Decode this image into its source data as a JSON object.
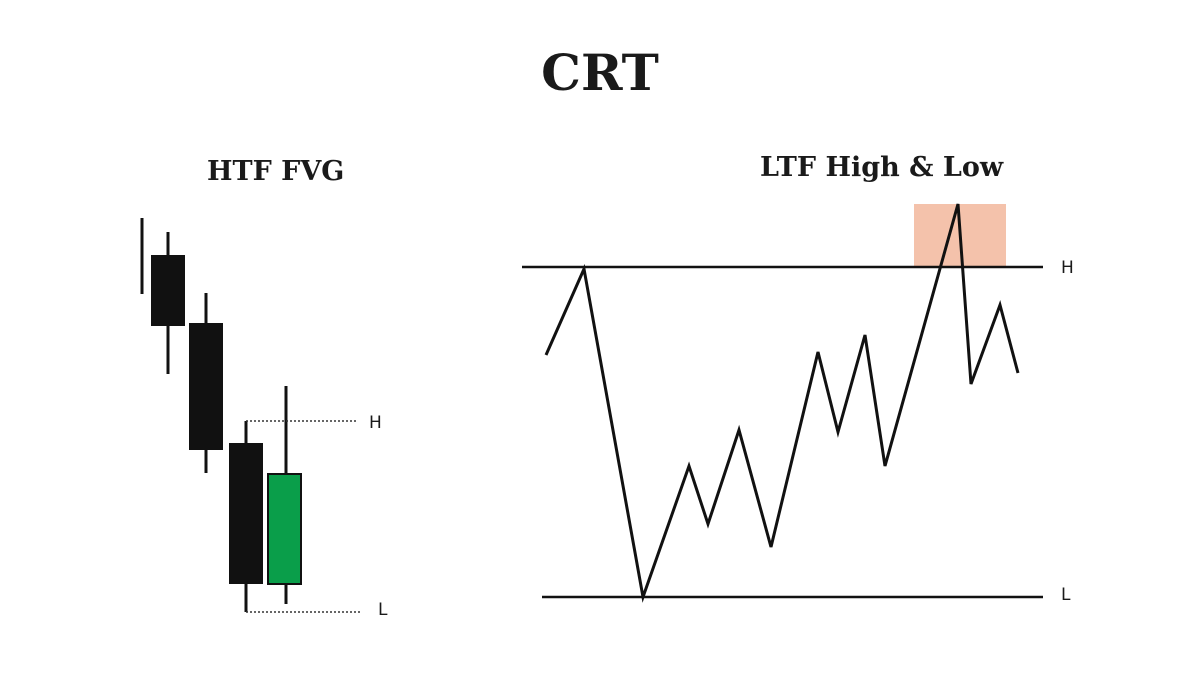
{
  "title": "CRT",
  "htf_panel": {
    "title": "HTF FVG",
    "high_label": "H",
    "low_label": "L",
    "candles": [
      {
        "direction": "bearish",
        "color": "#111111"
      },
      {
        "direction": "bearish",
        "color": "#111111"
      },
      {
        "direction": "bearish",
        "color": "#111111"
      },
      {
        "direction": "bullish",
        "color": "#0a9e4a"
      }
    ]
  },
  "ltf_panel": {
    "title": "LTF High & Low",
    "high_label": "H",
    "low_label": "L",
    "sweep_zone_color": "#f4c2ab"
  }
}
